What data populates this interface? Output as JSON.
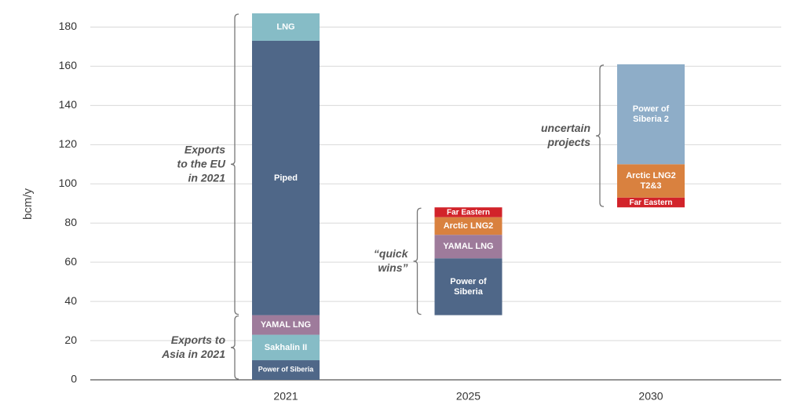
{
  "chart_data": {
    "type": "floating-stacked-bar",
    "y_label": "bcm/y",
    "ylim": [
      0,
      187
    ],
    "yticks": [
      0,
      20,
      40,
      60,
      80,
      100,
      120,
      140,
      160,
      180
    ],
    "grid": true,
    "categories": [
      "2021",
      "2025",
      "2030"
    ],
    "bars": [
      {
        "base": 0,
        "segments": [
          {
            "label": [
              "Power of Siberia"
            ],
            "color": "#4f6788",
            "value": 10
          },
          {
            "label": [
              "Sakhalin II"
            ],
            "color": "#86bcc6",
            "value": 13
          },
          {
            "label": [
              "YAMAL LNG"
            ],
            "color": "#9e7b9b",
            "value": 10
          },
          {
            "label": [
              "Piped"
            ],
            "color": "#4f6788",
            "value": 140
          },
          {
            "label": [
              "LNG"
            ],
            "color": "#86bcc6",
            "value": 14
          }
        ],
        "annotations": [
          {
            "text": [
              "Exports to",
              "Asia in 2021"
            ],
            "range": [
              0,
              33
            ]
          },
          {
            "text": [
              "Exports",
              "to the EU",
              "in 2021"
            ],
            "range": [
              33,
              187
            ]
          }
        ]
      },
      {
        "base": 33,
        "segments": [
          {
            "label": [
              "Power of",
              "Siberia"
            ],
            "color": "#4f6788",
            "value": 29
          },
          {
            "label": [
              "YAMAL LNG"
            ],
            "color": "#9e7b9b",
            "value": 12
          },
          {
            "label": [
              "Arctic LNG2"
            ],
            "color": "#d9813f",
            "value": 9
          },
          {
            "label": [
              "Far Eastern"
            ],
            "color": "#d2232a",
            "value": 5
          }
        ],
        "annotations": [
          {
            "text": [
              "“quick",
              "wins”"
            ],
            "range": [
              33,
              88
            ]
          }
        ]
      },
      {
        "base": 88,
        "segments": [
          {
            "label": [
              "Far Eastern"
            ],
            "color": "#d2232a",
            "value": 5
          },
          {
            "label": [
              "Arctic LNG2",
              "T2&3"
            ],
            "color": "#d9813f",
            "value": 17
          },
          {
            "label": [
              "Power of",
              "Siberia 2"
            ],
            "color": "#8eadc8",
            "value": 51
          }
        ],
        "annotations": [
          {
            "text": [
              "uncertain",
              "projects"
            ],
            "range": [
              88,
              161
            ]
          }
        ]
      }
    ]
  }
}
